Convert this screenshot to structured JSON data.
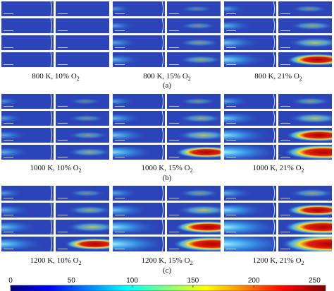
{
  "groups": [
    {
      "label": "(a)",
      "captions": [
        {
          "text": "800 K, 10% O",
          "sub": "2"
        },
        {
          "text": "800 K, 15% O",
          "sub": "2"
        },
        {
          "text": "800 K, 21% O",
          "sub": "2"
        }
      ]
    },
    {
      "label": "(b)",
      "captions": [
        {
          "text": "1000 K, 10% O",
          "sub": "2"
        },
        {
          "text": "1000 K, 15% O",
          "sub": "2"
        },
        {
          "text": "1000 K, 21% O",
          "sub": "2"
        }
      ]
    },
    {
      "label": "(c)",
      "captions": [
        {
          "text": "1200 K, 10% O",
          "sub": "2"
        },
        {
          "text": "1200 K, 15% O",
          "sub": "2"
        },
        {
          "text": "1200 K, 21% O",
          "sub": "2"
        }
      ]
    }
  ],
  "colorbar": {
    "lim": [
      0,
      259
    ],
    "ticks": [
      0,
      50,
      100,
      150,
      200,
      250
    ]
  }
}
